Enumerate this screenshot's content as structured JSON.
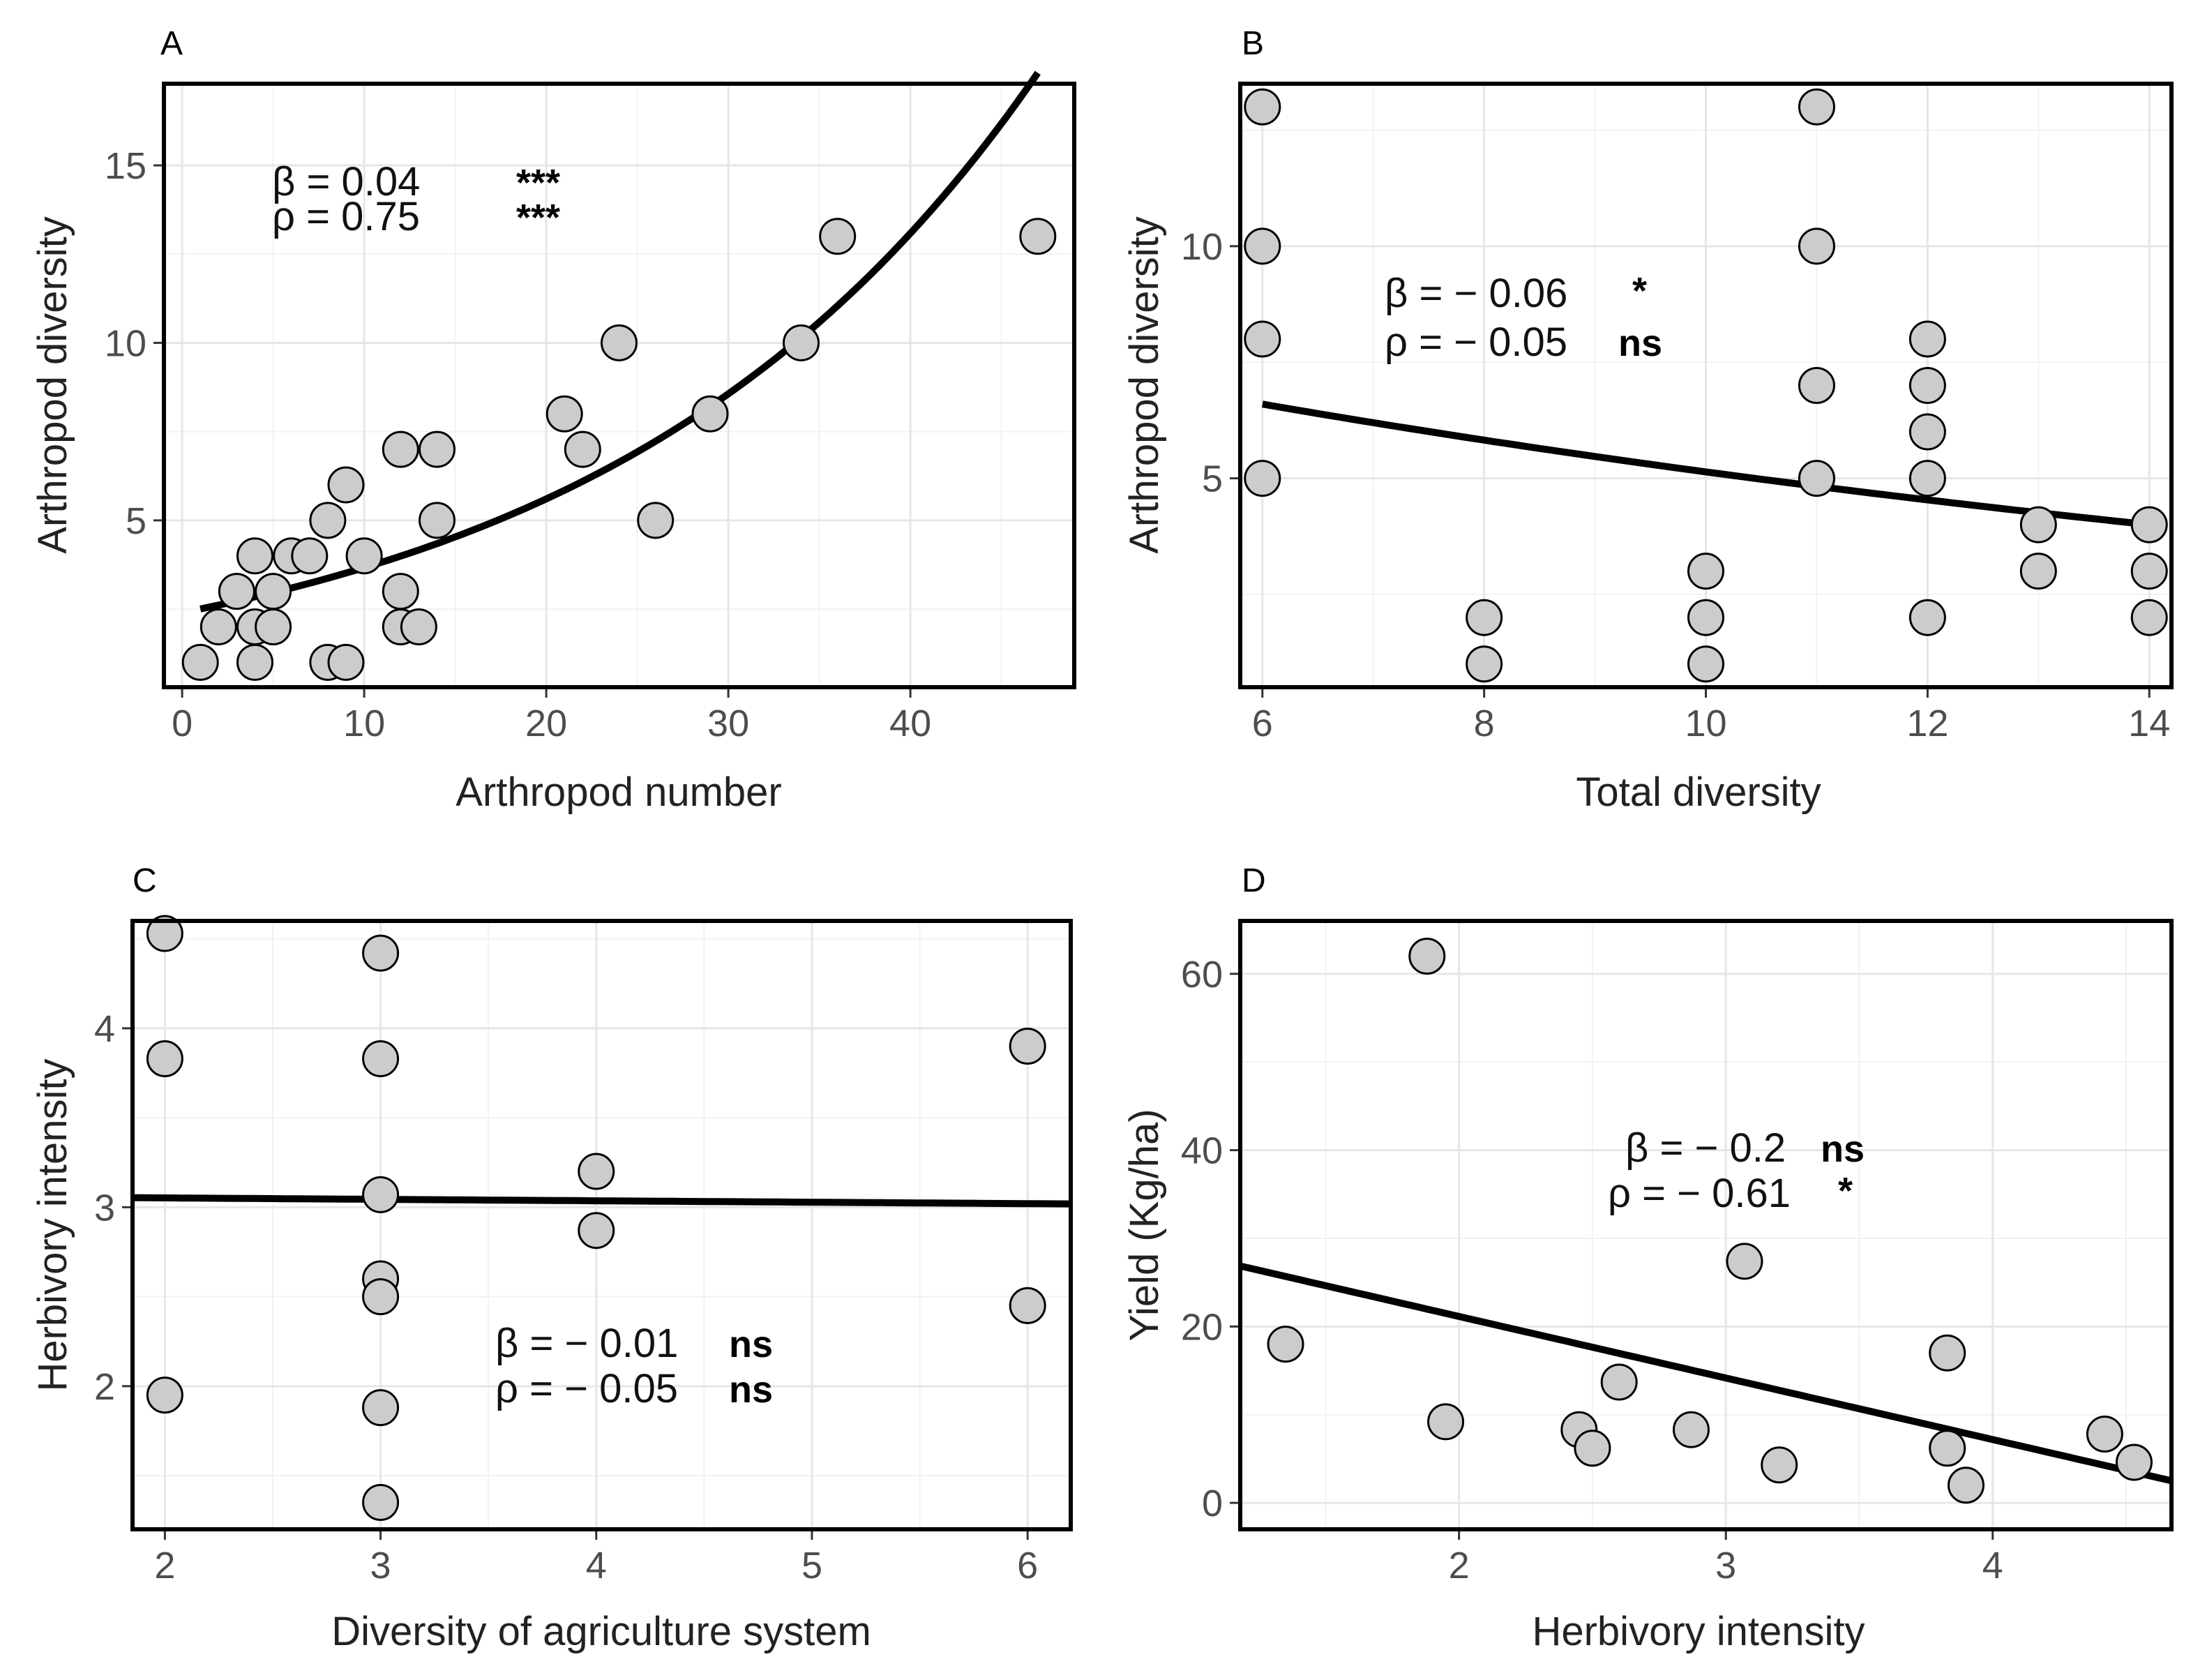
{
  "chart_data": [
    {
      "panel": "A",
      "type": "scatter",
      "xlabel": "Arthropod number",
      "ylabel": "Arthropod diversity",
      "xlim": [
        -1,
        49
      ],
      "ylim": [
        0.3,
        17.3
      ],
      "xticks": [
        0,
        10,
        20,
        30,
        40
      ],
      "yticks": [
        5,
        10,
        15
      ],
      "grid": true,
      "points": [
        [
          1,
          1
        ],
        [
          2,
          2
        ],
        [
          3,
          3
        ],
        [
          4,
          4
        ],
        [
          4,
          2
        ],
        [
          4,
          1
        ],
        [
          5,
          3
        ],
        [
          5,
          2
        ],
        [
          6,
          4
        ],
        [
          7,
          4
        ],
        [
          8,
          5
        ],
        [
          8,
          1
        ],
        [
          9,
          6
        ],
        [
          9,
          1
        ],
        [
          10,
          4
        ],
        [
          12,
          7
        ],
        [
          12,
          3
        ],
        [
          12,
          2
        ],
        [
          13,
          2
        ],
        [
          14,
          7
        ],
        [
          14,
          5
        ],
        [
          21,
          8
        ],
        [
          22,
          7
        ],
        [
          24,
          10
        ],
        [
          26,
          5
        ],
        [
          29,
          8
        ],
        [
          34,
          10
        ],
        [
          36,
          13
        ],
        [
          47,
          13
        ]
      ],
      "fit": {
        "model": "exponential",
        "x_range": [
          1,
          47
        ],
        "a": 2.4,
        "b": 0.0424
      },
      "annotations": {
        "beta_text": "β = 0.04",
        "beta_sig": "***",
        "rho_text": "ρ = 0.75",
        "rho_sig": "***"
      }
    },
    {
      "panel": "B",
      "type": "scatter",
      "xlabel": "Total diversity",
      "ylabel": "Arthropod diversity",
      "xlim": [
        5.8,
        14.2
      ],
      "ylim": [
        0.5,
        13.5
      ],
      "xticks": [
        6,
        8,
        10,
        12,
        14
      ],
      "yticks": [
        5,
        10
      ],
      "grid": true,
      "points": [
        [
          6,
          13
        ],
        [
          6,
          10
        ],
        [
          6,
          8
        ],
        [
          6,
          5
        ],
        [
          8,
          2
        ],
        [
          8,
          1
        ],
        [
          10,
          3
        ],
        [
          10,
          2
        ],
        [
          10,
          1
        ],
        [
          11,
          13
        ],
        [
          11,
          10
        ],
        [
          11,
          7
        ],
        [
          11,
          5
        ],
        [
          12,
          8
        ],
        [
          12,
          7
        ],
        [
          12,
          6
        ],
        [
          12,
          5
        ],
        [
          12,
          2
        ],
        [
          13,
          4
        ],
        [
          13,
          3
        ],
        [
          14,
          4
        ],
        [
          14,
          3
        ],
        [
          14,
          2
        ]
      ],
      "fit": {
        "model": "exponential",
        "x_range": [
          6,
          14
        ],
        "a": 9.6,
        "b": -0.0625
      },
      "annotations": {
        "beta_text": "β = − 0.06",
        "beta_sig": "*",
        "rho_text": "ρ = − 0.05",
        "rho_sig": "ns"
      }
    },
    {
      "panel": "C",
      "type": "scatter",
      "xlabel": "Diversity of agriculture system",
      "ylabel": "Herbivory intensity",
      "xlim": [
        1.85,
        6.2
      ],
      "ylim": [
        1.2,
        4.6
      ],
      "xticks": [
        2,
        3,
        4,
        5,
        6
      ],
      "yticks": [
        2,
        3,
        4
      ],
      "grid": true,
      "points": [
        [
          2,
          4.53
        ],
        [
          2,
          3.83
        ],
        [
          2,
          1.95
        ],
        [
          3,
          4.42
        ],
        [
          3,
          3.83
        ],
        [
          3,
          3.07
        ],
        [
          3,
          2.6
        ],
        [
          3,
          2.5
        ],
        [
          3,
          1.88
        ],
        [
          3,
          1.35
        ],
        [
          4,
          3.2
        ],
        [
          4,
          2.87
        ],
        [
          6,
          3.9
        ],
        [
          6,
          2.45
        ]
      ],
      "fit": {
        "model": "linear",
        "x_range": [
          1.85,
          6.2
        ],
        "intercept": 3.068,
        "slope": -0.008
      },
      "annotations": {
        "beta_text": "β = − 0.01",
        "beta_sig": "ns",
        "rho_text": "ρ = − 0.05",
        "rho_sig": "ns"
      }
    },
    {
      "panel": "D",
      "type": "scatter",
      "xlabel": "Herbivory intensity",
      "ylabel": "Yield (Kg/ha)",
      "xlim": [
        1.18,
        4.67
      ],
      "ylim": [
        -3,
        66
      ],
      "xticks": [
        2,
        3,
        4
      ],
      "yticks": [
        0,
        20,
        40,
        60
      ],
      "grid": true,
      "points": [
        [
          1.35,
          18
        ],
        [
          1.88,
          62
        ],
        [
          1.95,
          9.2
        ],
        [
          2.45,
          8.3
        ],
        [
          2.5,
          6.2
        ],
        [
          2.6,
          13.7
        ],
        [
          2.87,
          8.3
        ],
        [
          3.07,
          27.4
        ],
        [
          3.2,
          4.3
        ],
        [
          3.83,
          17
        ],
        [
          3.83,
          6.2
        ],
        [
          3.9,
          2
        ],
        [
          4.42,
          7.8
        ],
        [
          4.53,
          4.6
        ]
      ],
      "fit": {
        "model": "linear",
        "x_range": [
          1.18,
          4.67
        ],
        "intercept": 35.1,
        "slope": -6.98
      },
      "annotations": {
        "beta_text": "β = − 0.2",
        "beta_sig": "ns",
        "rho_text": "ρ = − 0.61",
        "rho_sig": "*"
      }
    }
  ]
}
